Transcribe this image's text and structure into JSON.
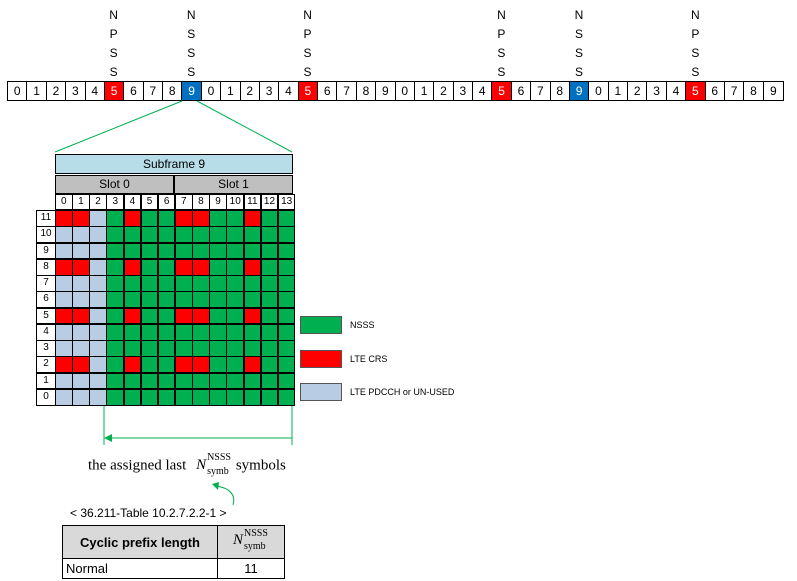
{
  "top_labels": [
    {
      "text": "N\nP\nS\nS",
      "slot": 5
    },
    {
      "text": "N\nS\nS\nS",
      "slot": 9
    },
    {
      "text": "N\nP\nS\nS",
      "slot": 15
    },
    {
      "text": "N\nP\nS\nS",
      "slot": 25
    },
    {
      "text": "N\nS\nS\nS",
      "slot": 29
    },
    {
      "text": "N\nP\nS\nS",
      "slot": 35
    }
  ],
  "frame_cells": [
    "0",
    "1",
    "2",
    "3",
    "4",
    "5",
    "6",
    "7",
    "8",
    "9",
    "0",
    "1",
    "2",
    "3",
    "4",
    "5",
    "6",
    "7",
    "8",
    "9",
    "0",
    "1",
    "2",
    "3",
    "4",
    "5",
    "6",
    "7",
    "8",
    "9",
    "0",
    "1",
    "2",
    "3",
    "4",
    "5",
    "6",
    "7",
    "8",
    "9"
  ],
  "frame_colors": {
    "5": "red",
    "9": "blue",
    "15": "red",
    "25": "red",
    "29": "blue",
    "35": "red"
  },
  "subframe": {
    "title": "Subframe 9",
    "slot0": "Slot 0",
    "slot1": "Slot 1"
  },
  "symbols": [
    "0",
    "1",
    "2",
    "3",
    "4",
    "5",
    "6",
    "7",
    "8",
    "9",
    "10",
    "11",
    "12",
    "13"
  ],
  "rows": [
    "11",
    "10",
    "9",
    "8",
    "7",
    "6",
    "5",
    "4",
    "3",
    "2",
    "1",
    "0"
  ],
  "colors": {
    "nsss": "#00b050",
    "crs": "#ff0000",
    "pdcch": "#b8cce4",
    "frame_red": "#ff0000",
    "frame_blue": "#0070c0",
    "header_blue": "#b7dde8",
    "slot_gray": "#bfbfbf",
    "arrow_green": "#00b050"
  },
  "crs_rows": [
    "11",
    "8",
    "5",
    "2"
  ],
  "crs_cols": [
    0,
    1,
    4,
    7,
    8,
    11
  ],
  "pdcch_cols": [
    0,
    1,
    2
  ],
  "legend": [
    {
      "label": "NSSS",
      "color": "nsss"
    },
    {
      "label": "LTE CRS",
      "color": "crs"
    },
    {
      "label": "LTE PDCCH or UN-USED",
      "color": "pdcch"
    }
  ],
  "assigned_text_before": "the assigned last",
  "assigned_text_after": "symbols",
  "nsymb_base": "N",
  "nsymb_sup": "NSSS",
  "nsymb_sub": "symb",
  "table_caption": "< 36.211-Table 10.2.7.2.2-1 >",
  "table": {
    "header_col1": "Cyclic prefix length",
    "rows": [
      {
        "cp": "Normal",
        "value": "11"
      }
    ]
  }
}
